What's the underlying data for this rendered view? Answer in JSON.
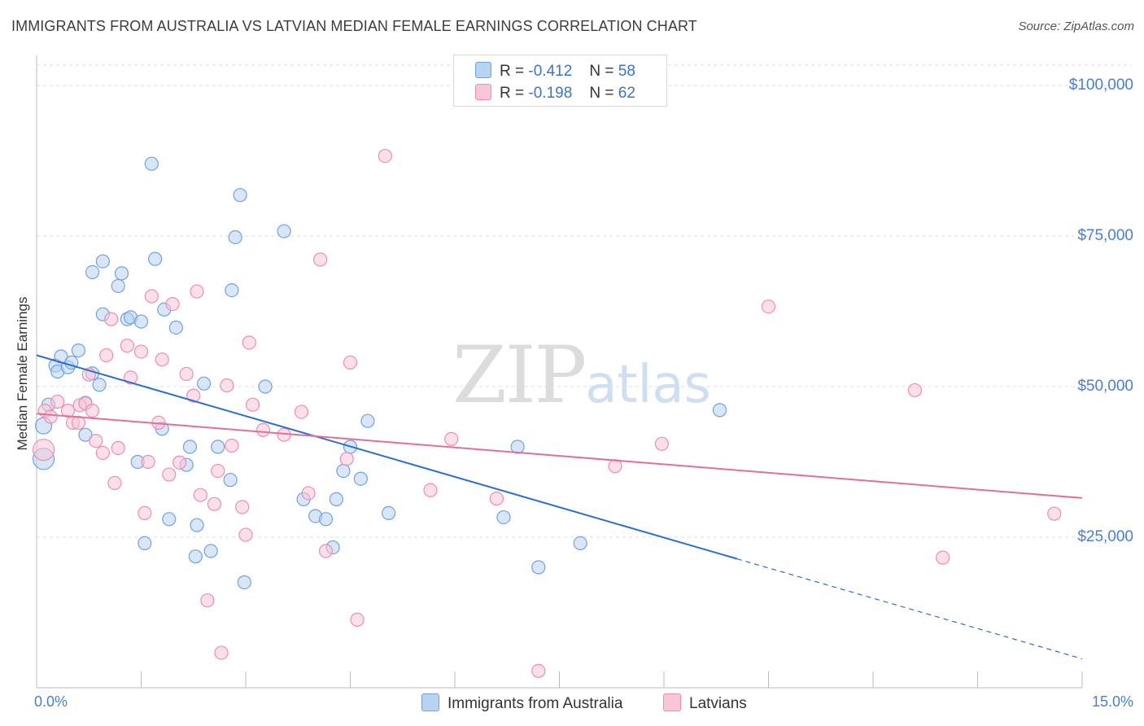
{
  "chart_data": {
    "type": "scatter",
    "title": "IMMIGRANTS FROM AUSTRALIA VS LATVIAN MEDIAN FEMALE EARNINGS CORRELATION CHART",
    "source": "Source: ZipAtlas.com",
    "ylabel": "Median Female Earnings",
    "xlim": [
      0,
      15
    ],
    "ylim": [
      0,
      105000
    ],
    "x_tick_labels": [
      "0.0%",
      "15.0%"
    ],
    "y_ticks": [
      {
        "value": 25000,
        "label": "$25,000"
      },
      {
        "value": 50000,
        "label": "$50,000"
      },
      {
        "value": 75000,
        "label": "$75,000"
      },
      {
        "value": 100000,
        "label": "$100,000"
      }
    ],
    "grid": true,
    "watermark": {
      "zip": "ZIP",
      "atlas": "atlas"
    },
    "legend": {
      "placement": "top-center",
      "rows": [
        {
          "r_label": "R =",
          "r_value": "-0.412",
          "n_label": "N =",
          "n_value": "58"
        },
        {
          "r_label": "R =",
          "r_value": "-0.198",
          "n_label": "N =",
          "n_value": "62"
        }
      ]
    },
    "series": [
      {
        "name": "Immigrants from Australia",
        "color": "#6fa3e0",
        "fill": "#b8d2f2",
        "trend": {
          "x0": 0,
          "y0": 55200,
          "x1": 10.05,
          "y1": 21400,
          "dashed_to_x": 15,
          "dashed_to_y": 4800,
          "color": "#2b6fd0"
        },
        "points": [
          [
            0.1,
            38000
          ],
          [
            0.1,
            43500
          ],
          [
            0.17,
            47000
          ],
          [
            0.27,
            53500
          ],
          [
            0.3,
            52500
          ],
          [
            0.35,
            55000
          ],
          [
            0.45,
            53200
          ],
          [
            0.5,
            54000
          ],
          [
            0.6,
            56000
          ],
          [
            0.7,
            47300
          ],
          [
            0.7,
            42000
          ],
          [
            0.8,
            52200
          ],
          [
            0.9,
            50300
          ],
          [
            0.8,
            69000
          ],
          [
            0.95,
            62000
          ],
          [
            0.95,
            70800
          ],
          [
            1.17,
            66700
          ],
          [
            1.22,
            68800
          ],
          [
            1.3,
            61200
          ],
          [
            1.35,
            61500
          ],
          [
            1.5,
            60800
          ],
          [
            1.45,
            37500
          ],
          [
            1.55,
            24000
          ],
          [
            1.65,
            87000
          ],
          [
            1.7,
            71200
          ],
          [
            1.8,
            43000
          ],
          [
            1.83,
            62800
          ],
          [
            1.9,
            28000
          ],
          [
            2.0,
            59800
          ],
          [
            2.15,
            37000
          ],
          [
            2.2,
            40000
          ],
          [
            2.28,
            21800
          ],
          [
            2.3,
            27000
          ],
          [
            2.4,
            50500
          ],
          [
            2.5,
            22700
          ],
          [
            2.6,
            40000
          ],
          [
            2.8,
            66000
          ],
          [
            2.78,
            34500
          ],
          [
            2.85,
            74800
          ],
          [
            2.92,
            81800
          ],
          [
            2.98,
            17500
          ],
          [
            3.28,
            50000
          ],
          [
            3.55,
            75800
          ],
          [
            3.83,
            31300
          ],
          [
            4.0,
            28500
          ],
          [
            4.15,
            28000
          ],
          [
            4.25,
            23300
          ],
          [
            4.3,
            31300
          ],
          [
            4.4,
            36000
          ],
          [
            4.5,
            40000
          ],
          [
            4.65,
            34700
          ],
          [
            4.75,
            44300
          ],
          [
            5.05,
            29000
          ],
          [
            6.7,
            28300
          ],
          [
            6.9,
            40000
          ],
          [
            7.2,
            20000
          ],
          [
            7.8,
            24000
          ],
          [
            9.8,
            46100
          ]
        ]
      },
      {
        "name": "Latvians",
        "color": "#ee8db0",
        "fill": "#f8c6d7",
        "trend": {
          "x0": 0,
          "y0": 45500,
          "x1": 15,
          "y1": 31500,
          "color": "#e0709a"
        },
        "points": [
          [
            0.1,
            39500
          ],
          [
            0.12,
            46000
          ],
          [
            0.2,
            45000
          ],
          [
            0.3,
            47500
          ],
          [
            0.45,
            46000
          ],
          [
            0.52,
            44000
          ],
          [
            0.6,
            44000
          ],
          [
            0.62,
            46900
          ],
          [
            0.7,
            47200
          ],
          [
            0.75,
            52000
          ],
          [
            0.8,
            46000
          ],
          [
            0.85,
            41000
          ],
          [
            0.95,
            39000
          ],
          [
            1.0,
            55200
          ],
          [
            1.07,
            61200
          ],
          [
            1.12,
            34000
          ],
          [
            1.17,
            39800
          ],
          [
            1.3,
            56800
          ],
          [
            1.35,
            51500
          ],
          [
            1.5,
            55800
          ],
          [
            1.55,
            29000
          ],
          [
            1.6,
            37500
          ],
          [
            1.65,
            65000
          ],
          [
            1.75,
            44000
          ],
          [
            1.8,
            54500
          ],
          [
            1.9,
            35400
          ],
          [
            1.95,
            63700
          ],
          [
            2.05,
            37400
          ],
          [
            2.15,
            52100
          ],
          [
            2.25,
            48500
          ],
          [
            2.3,
            65800
          ],
          [
            2.35,
            32000
          ],
          [
            2.45,
            14500
          ],
          [
            2.55,
            30500
          ],
          [
            2.6,
            36000
          ],
          [
            2.65,
            5800
          ],
          [
            2.73,
            50200
          ],
          [
            2.8,
            40200
          ],
          [
            2.95,
            30000
          ],
          [
            3.0,
            25400
          ],
          [
            3.05,
            57300
          ],
          [
            3.1,
            47000
          ],
          [
            3.25,
            42800
          ],
          [
            3.55,
            42000
          ],
          [
            3.8,
            45800
          ],
          [
            3.9,
            32300
          ],
          [
            4.07,
            71100
          ],
          [
            4.15,
            22700
          ],
          [
            4.45,
            38000
          ],
          [
            4.5,
            54000
          ],
          [
            4.6,
            11300
          ],
          [
            5.0,
            88300
          ],
          [
            5.65,
            32800
          ],
          [
            5.95,
            41300
          ],
          [
            6.6,
            31400
          ],
          [
            7.2,
            2800
          ],
          [
            8.3,
            36800
          ],
          [
            8.97,
            40500
          ],
          [
            10.5,
            63300
          ],
          [
            12.6,
            49400
          ],
          [
            13.0,
            21600
          ],
          [
            14.6,
            28900
          ]
        ]
      }
    ]
  }
}
